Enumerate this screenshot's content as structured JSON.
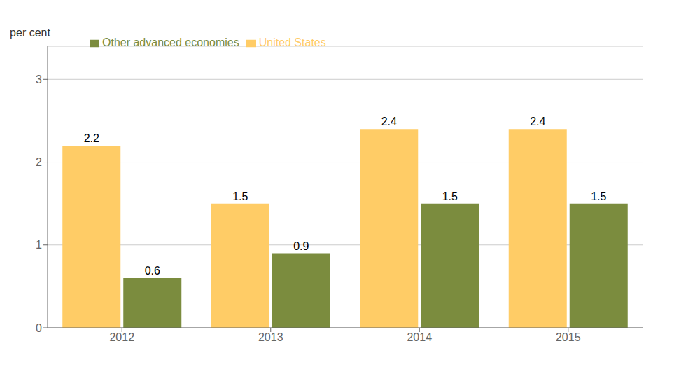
{
  "chart_data": {
    "type": "bar",
    "categories": [
      "2012",
      "2013",
      "2014",
      "2015"
    ],
    "series": [
      {
        "name": "United States",
        "color": "#FFCC66",
        "values": [
          2.2,
          1.5,
          2.4,
          2.4
        ]
      },
      {
        "name": "Other advanced economies",
        "color": "#7B8C3E",
        "values": [
          0.6,
          0.9,
          1.5,
          1.5
        ]
      }
    ],
    "ylabel": "per cent",
    "ylim": [
      0,
      3.4
    ],
    "yticks": [
      0,
      1,
      2,
      3
    ],
    "grid": true,
    "legend": "upper left",
    "data_labels": true
  }
}
